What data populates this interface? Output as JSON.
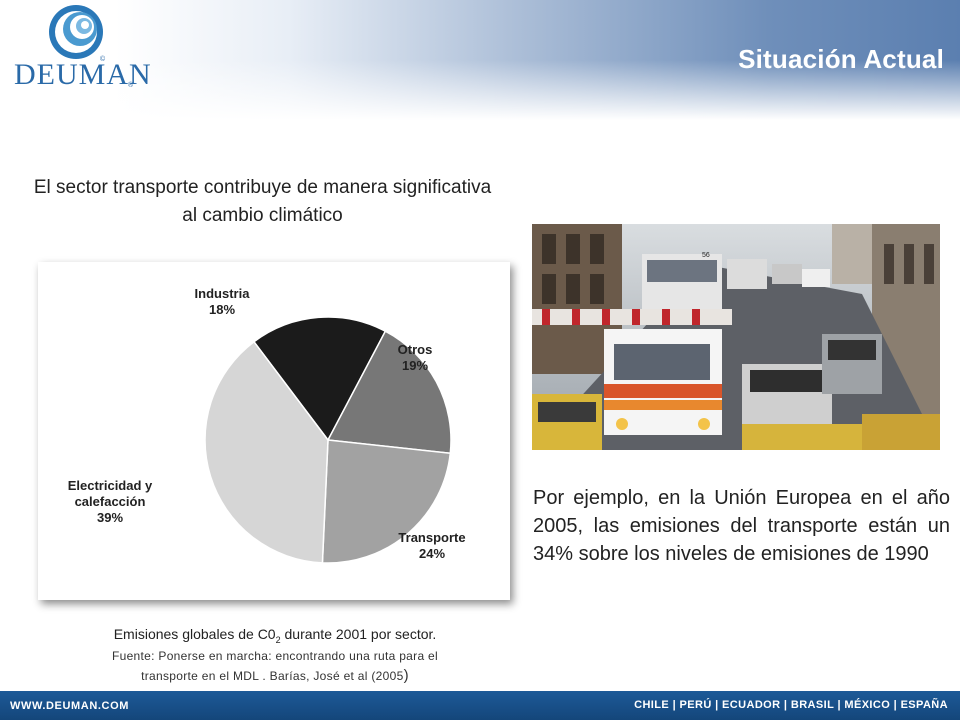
{
  "header": {
    "brand": "DEUMAN",
    "brand_reg": "®",
    "brand_c": "©",
    "title": "Situación Actual"
  },
  "subtitle": "El sector transporte contribuye de manera significativa al cambio climático",
  "chart_data": {
    "type": "pie",
    "slices": [
      {
        "label": "Industria",
        "value": 18,
        "value_label": "18%",
        "color": "#1b1b1b"
      },
      {
        "label": "Otros",
        "value": 19,
        "value_label": "19%",
        "color": "#777777"
      },
      {
        "label": "Transporte",
        "value": 24,
        "value_label": "24%",
        "color": "#a2a2a2"
      },
      {
        "label": "Electricidad y calefacción",
        "label_lines": [
          "Electricidad y",
          "calefacción"
        ],
        "value": 39,
        "value_label": "39%",
        "color": "#d6d6d6"
      }
    ]
  },
  "caption": {
    "main_pre": "Emisiones globales de C0",
    "main_sub": "2",
    "main_post": " durante 2001 por sector.",
    "source_line1": "Fuente: Ponerse en marcha: encontrando una ruta para el",
    "source_line2": "transporte en el MDL . Barías, José et al (2005",
    "source_paren": ")"
  },
  "photo_text": {
    "bus_number": "56"
  },
  "body_text": "Por ejemplo, en la Unión Europea en el año 2005, las emisiones del transporte están un 34% sobre los niveles de emisiones de 1990",
  "footer": {
    "website": "WWW.DEUMAN.COM",
    "countries": "CHILE | PERÚ | ECUADOR | BRASIL | MÉXICO | ESPAÑA"
  }
}
